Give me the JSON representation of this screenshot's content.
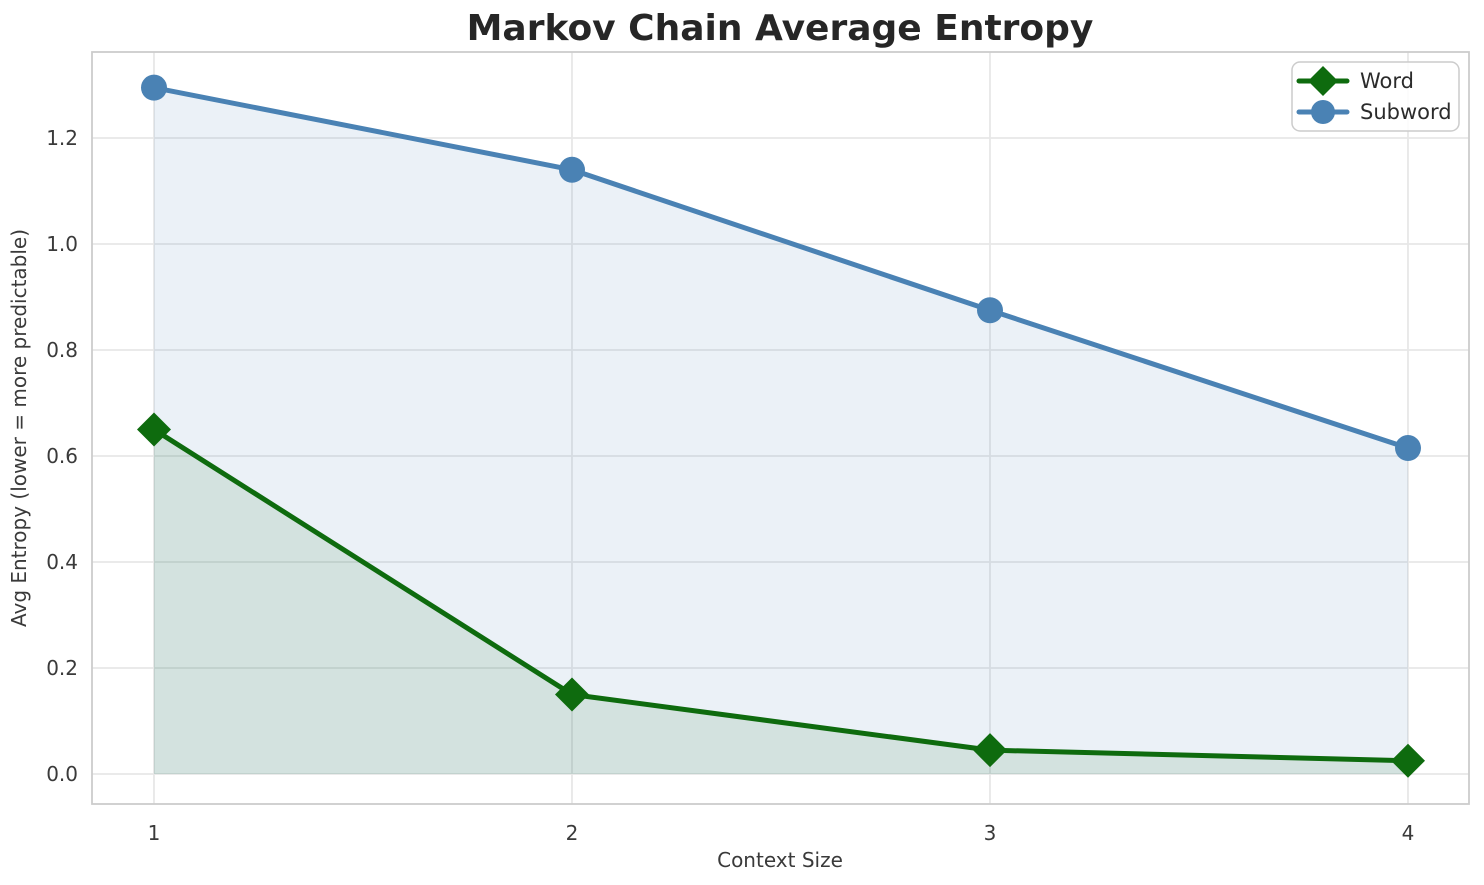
{
  "chart_data": {
    "type": "line",
    "title": "Markov Chain Average Entropy",
    "xlabel": "Context Size",
    "ylabel": "Avg Entropy (lower = more predictable)",
    "x": [
      1,
      2,
      3,
      4
    ],
    "x_tick_labels": [
      "1",
      "2",
      "3",
      "4"
    ],
    "y_tick_values": [
      0.0,
      0.2,
      0.4,
      0.6,
      0.8,
      1.0,
      1.2
    ],
    "y_tick_labels": [
      "0.0",
      "0.2",
      "0.4",
      "0.6",
      "0.8",
      "1.0",
      "1.2"
    ],
    "xlim": [
      0.85,
      4.15
    ],
    "ylim": [
      -0.06,
      1.36
    ],
    "grid": true,
    "legend_position": "upper right",
    "series": [
      {
        "name": "Word",
        "marker": "diamond",
        "color": "#0e6b0e",
        "fill_to_zero": true,
        "values": [
          0.65,
          0.15,
          0.045,
          0.025
        ]
      },
      {
        "name": "Subword",
        "marker": "circle",
        "color": "#4a82b4",
        "fill_to_zero": true,
        "values": [
          1.295,
          1.14,
          0.875,
          0.615
        ]
      }
    ],
    "style": {
      "background": "#ffffff",
      "grid_color": "#e7e7e7",
      "spine_color": "#cccccc",
      "title_color": "#262626",
      "text_color": "#3a3a3a",
      "fill_opacity": 0.11,
      "line_width": 5
    }
  }
}
